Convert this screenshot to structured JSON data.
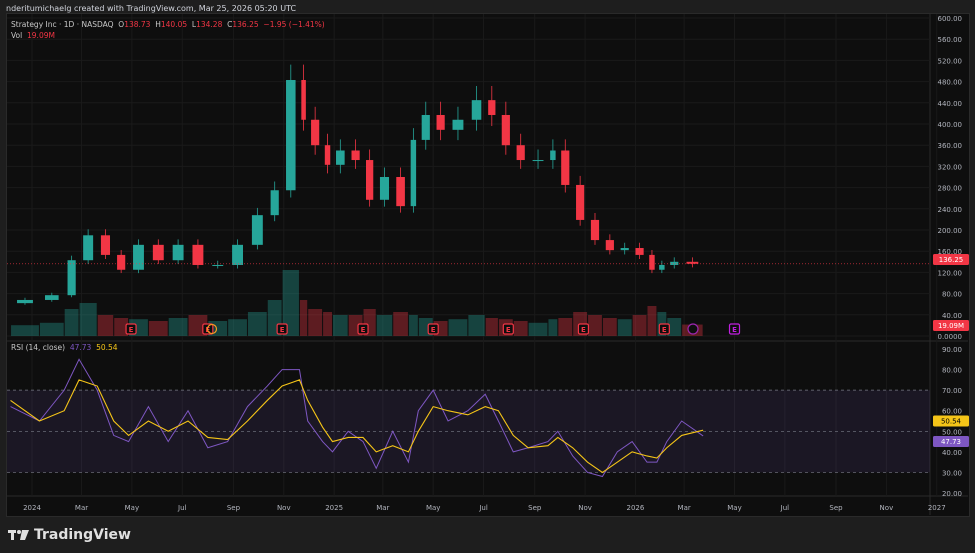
{
  "credit": "nderitumichaelg created with TradingView.com, Mar 25, 2026 05:20 UTC",
  "legend": {
    "symbol": "Strategy Inc · 1D · NASDAQ",
    "o_label": "O",
    "o": "138.73",
    "h_label": "H",
    "h": "140.05",
    "l_label": "L",
    "l": "134.28",
    "c_label": "C",
    "c": "136.25",
    "change": "−1.95 (−1.41%)",
    "vol_label": "Vol",
    "vol": "19.09M"
  },
  "rsi_legend": {
    "label": "RSI (14, close)",
    "rsi": "47.73",
    "ma": "50.54"
  },
  "badges": {
    "price": "136.25",
    "volume": "19.09M",
    "rsi_ma": "50.54",
    "rsi": "47.73"
  },
  "brand": "TradingView",
  "colors": {
    "up": "#26a69a",
    "down": "#f23645",
    "rsi": "#7e57c2",
    "rsi_ma": "#f5c518",
    "earnings": "#f23645",
    "earnings_future": "#c020e0"
  },
  "chart_data": [
    {
      "type": "candlestick",
      "title": "Strategy Inc · 1D · NASDAQ",
      "ylim": [
        0,
        600
      ],
      "yticks": [
        "0.0000",
        "40.00",
        "80.00",
        "120.00",
        "160.00",
        "200.00",
        "240.00",
        "280.00",
        "320.00",
        "360.00",
        "400.00",
        "440.00",
        "480.00",
        "520.00",
        "560.00",
        "600.00"
      ],
      "xticks": [
        {
          "date": "2024-01-01",
          "label": "2024"
        },
        {
          "date": "2024-03-01",
          "label": "Mar"
        },
        {
          "date": "2024-05-01",
          "label": "May"
        },
        {
          "date": "2024-07-01",
          "label": "Jul"
        },
        {
          "date": "2024-09-01",
          "label": "Sep"
        },
        {
          "date": "2024-11-01",
          "label": "Nov"
        },
        {
          "date": "2025-01-01",
          "label": "2025"
        },
        {
          "date": "2025-03-01",
          "label": "Mar"
        },
        {
          "date": "2025-05-01",
          "label": "May"
        },
        {
          "date": "2025-07-01",
          "label": "Jul"
        },
        {
          "date": "2025-09-01",
          "label": "Sep"
        },
        {
          "date": "2025-11-01",
          "label": "Nov"
        },
        {
          "date": "2026-01-01",
          "label": "2026"
        },
        {
          "date": "2026-03-01",
          "label": "Mar"
        },
        {
          "date": "2026-05-01",
          "label": "May"
        },
        {
          "date": "2026-07-01",
          "label": "Jul"
        },
        {
          "date": "2026-09-01",
          "label": "Sep"
        },
        {
          "date": "2026-11-01",
          "label": "Nov"
        },
        {
          "date": "2027-01-01",
          "label": "2027"
        }
      ],
      "x": [
        "2023-12-06",
        "2024-01-10",
        "2024-02-09",
        "2024-02-27",
        "2024-03-20",
        "2024-04-09",
        "2024-04-27",
        "2024-05-21",
        "2024-06-14",
        "2024-07-08",
        "2024-08-01",
        "2024-08-25",
        "2024-09-18",
        "2024-10-12",
        "2024-10-30",
        "2024-11-20",
        "2024-11-30",
        "2024-12-18",
        "2024-12-30",
        "2025-01-18",
        "2025-02-05",
        "2025-02-21",
        "2025-03-13",
        "2025-04-01",
        "2025-04-13",
        "2025-05-01",
        "2025-05-19",
        "2025-06-12",
        "2025-07-03",
        "2025-07-19",
        "2025-08-06",
        "2025-08-24",
        "2025-09-17",
        "2025-09-29",
        "2025-10-17",
        "2025-11-04",
        "2025-11-22",
        "2025-12-10",
        "2025-12-28",
        "2026-01-15",
        "2026-01-27",
        "2026-02-08",
        "2026-02-26",
        "2026-03-24"
      ],
      "close": [
        62,
        68,
        77,
        143,
        190,
        153,
        125,
        172,
        143,
        172,
        134,
        134,
        172,
        228,
        275,
        483,
        408,
        360,
        323,
        350,
        332,
        257,
        300,
        245,
        370,
        417,
        389,
        408,
        445,
        417,
        360,
        332,
        332,
        350,
        285,
        219,
        181,
        162,
        166,
        153,
        125,
        134,
        140,
        136.25
      ],
      "volume_m": [
        15,
        18,
        22,
        45,
        55,
        35,
        30,
        28,
        25,
        30,
        35,
        25,
        28,
        40,
        60,
        110,
        60,
        45,
        40,
        35,
        35,
        45,
        35,
        40,
        35,
        30,
        25,
        28,
        35,
        30,
        28,
        25,
        22,
        28,
        30,
        40,
        35,
        30,
        28,
        35,
        50,
        40,
        30,
        19.09
      ],
      "earnings_dates": [
        "2024-04-30",
        "2024-08-01",
        "2024-10-30",
        "2025-02-05",
        "2025-05-01",
        "2025-07-31",
        "2025-10-30",
        "2026-02-05",
        "2026-05-01"
      ],
      "last_price": 136.25
    },
    {
      "type": "line",
      "title": "RSI (14, close)",
      "ylim": [
        20,
        90
      ],
      "yticks": [
        "20.00",
        "30.00",
        "40.00",
        "50.00",
        "60.00",
        "70.00",
        "80.00",
        "90.00"
      ],
      "bands": [
        30,
        50,
        70
      ],
      "series": [
        {
          "name": "RSI",
          "values": [
            62,
            55,
            70,
            85,
            70,
            48,
            45,
            62,
            45,
            60,
            42,
            45,
            62,
            72,
            80,
            80,
            55,
            45,
            40,
            50,
            45,
            32,
            50,
            35,
            60,
            70,
            55,
            60,
            68,
            55,
            40,
            42,
            45,
            50,
            38,
            30,
            28,
            40,
            45,
            35,
            35,
            45,
            55,
            47.73
          ]
        },
        {
          "name": "MA",
          "values": [
            65,
            55,
            60,
            75,
            72,
            55,
            48,
            55,
            50,
            55,
            47,
            46,
            55,
            65,
            72,
            75,
            65,
            52,
            45,
            47,
            47,
            40,
            43,
            40,
            50,
            62,
            60,
            58,
            62,
            60,
            48,
            42,
            43,
            47,
            42,
            35,
            30,
            35,
            40,
            38,
            37,
            42,
            48,
            50.54
          ]
        }
      ]
    }
  ]
}
